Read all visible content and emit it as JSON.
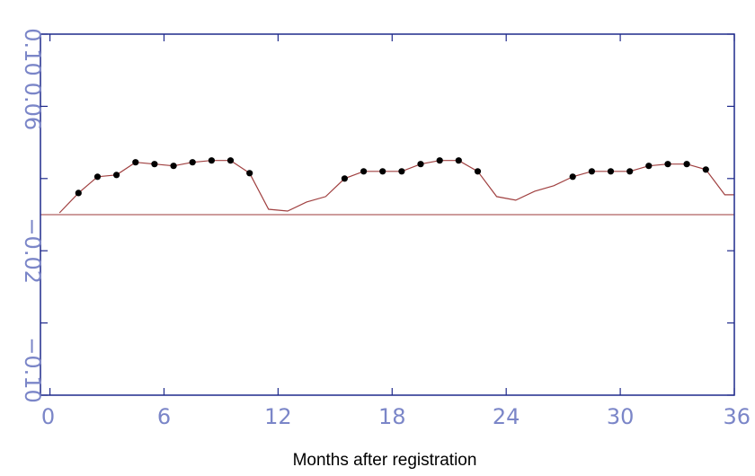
{
  "chart_data": {
    "type": "line",
    "title": "",
    "xlabel": "Months after registration",
    "ylabel": "",
    "xlim": [
      -0.5,
      36
    ],
    "ylim": [
      -0.1,
      0.1
    ],
    "x_ticks": [
      0,
      6,
      12,
      18,
      24,
      30,
      36
    ],
    "x_tick_labels": [
      "0",
      "6",
      "12",
      "18",
      "24",
      "30",
      "36"
    ],
    "y_ticks": [
      -0.1,
      -0.06,
      -0.02,
      0.02,
      0.06,
      0.1
    ],
    "y_tick_labels": [
      "−0.10",
      "",
      "−0.02",
      "",
      "0.06",
      "0.10"
    ],
    "grid": false,
    "reference_line": {
      "y": 0.0
    },
    "colors": {
      "frame": "#1f2a8c",
      "tick_label": "#7b86c8",
      "series_line": "#a04040",
      "reference_line": "#b06060",
      "marker": "#000000"
    },
    "series": [
      {
        "x": [
          0.5,
          1.5,
          2.5,
          3.5,
          4.5,
          5.5,
          6.5,
          7.5,
          8.5,
          9.5,
          10.5,
          11.5,
          12.5,
          13.5,
          14.5,
          15.5,
          16.5,
          17.5,
          18.5,
          19.5,
          20.5,
          21.5,
          22.5,
          23.5,
          24.5,
          25.5,
          26.5,
          27.5,
          28.5,
          29.5,
          30.5,
          31.5,
          32.5,
          33.5,
          34.5,
          35.5,
          36.0
        ],
        "y": [
          0.001,
          0.012,
          0.021,
          0.022,
          0.029,
          0.028,
          0.027,
          0.029,
          0.03,
          0.03,
          0.023,
          0.003,
          0.002,
          0.007,
          0.01,
          0.02,
          0.024,
          0.024,
          0.024,
          0.028,
          0.03,
          0.03,
          0.024,
          0.01,
          0.008,
          0.013,
          0.016,
          0.021,
          0.024,
          0.024,
          0.024,
          0.027,
          0.028,
          0.028,
          0.025,
          0.011,
          0.011
        ],
        "marked": [
          false,
          true,
          true,
          true,
          true,
          true,
          true,
          true,
          true,
          true,
          true,
          false,
          false,
          false,
          false,
          true,
          true,
          true,
          true,
          true,
          true,
          true,
          true,
          false,
          false,
          false,
          false,
          true,
          true,
          true,
          true,
          true,
          true,
          true,
          true,
          false,
          false
        ]
      }
    ]
  }
}
